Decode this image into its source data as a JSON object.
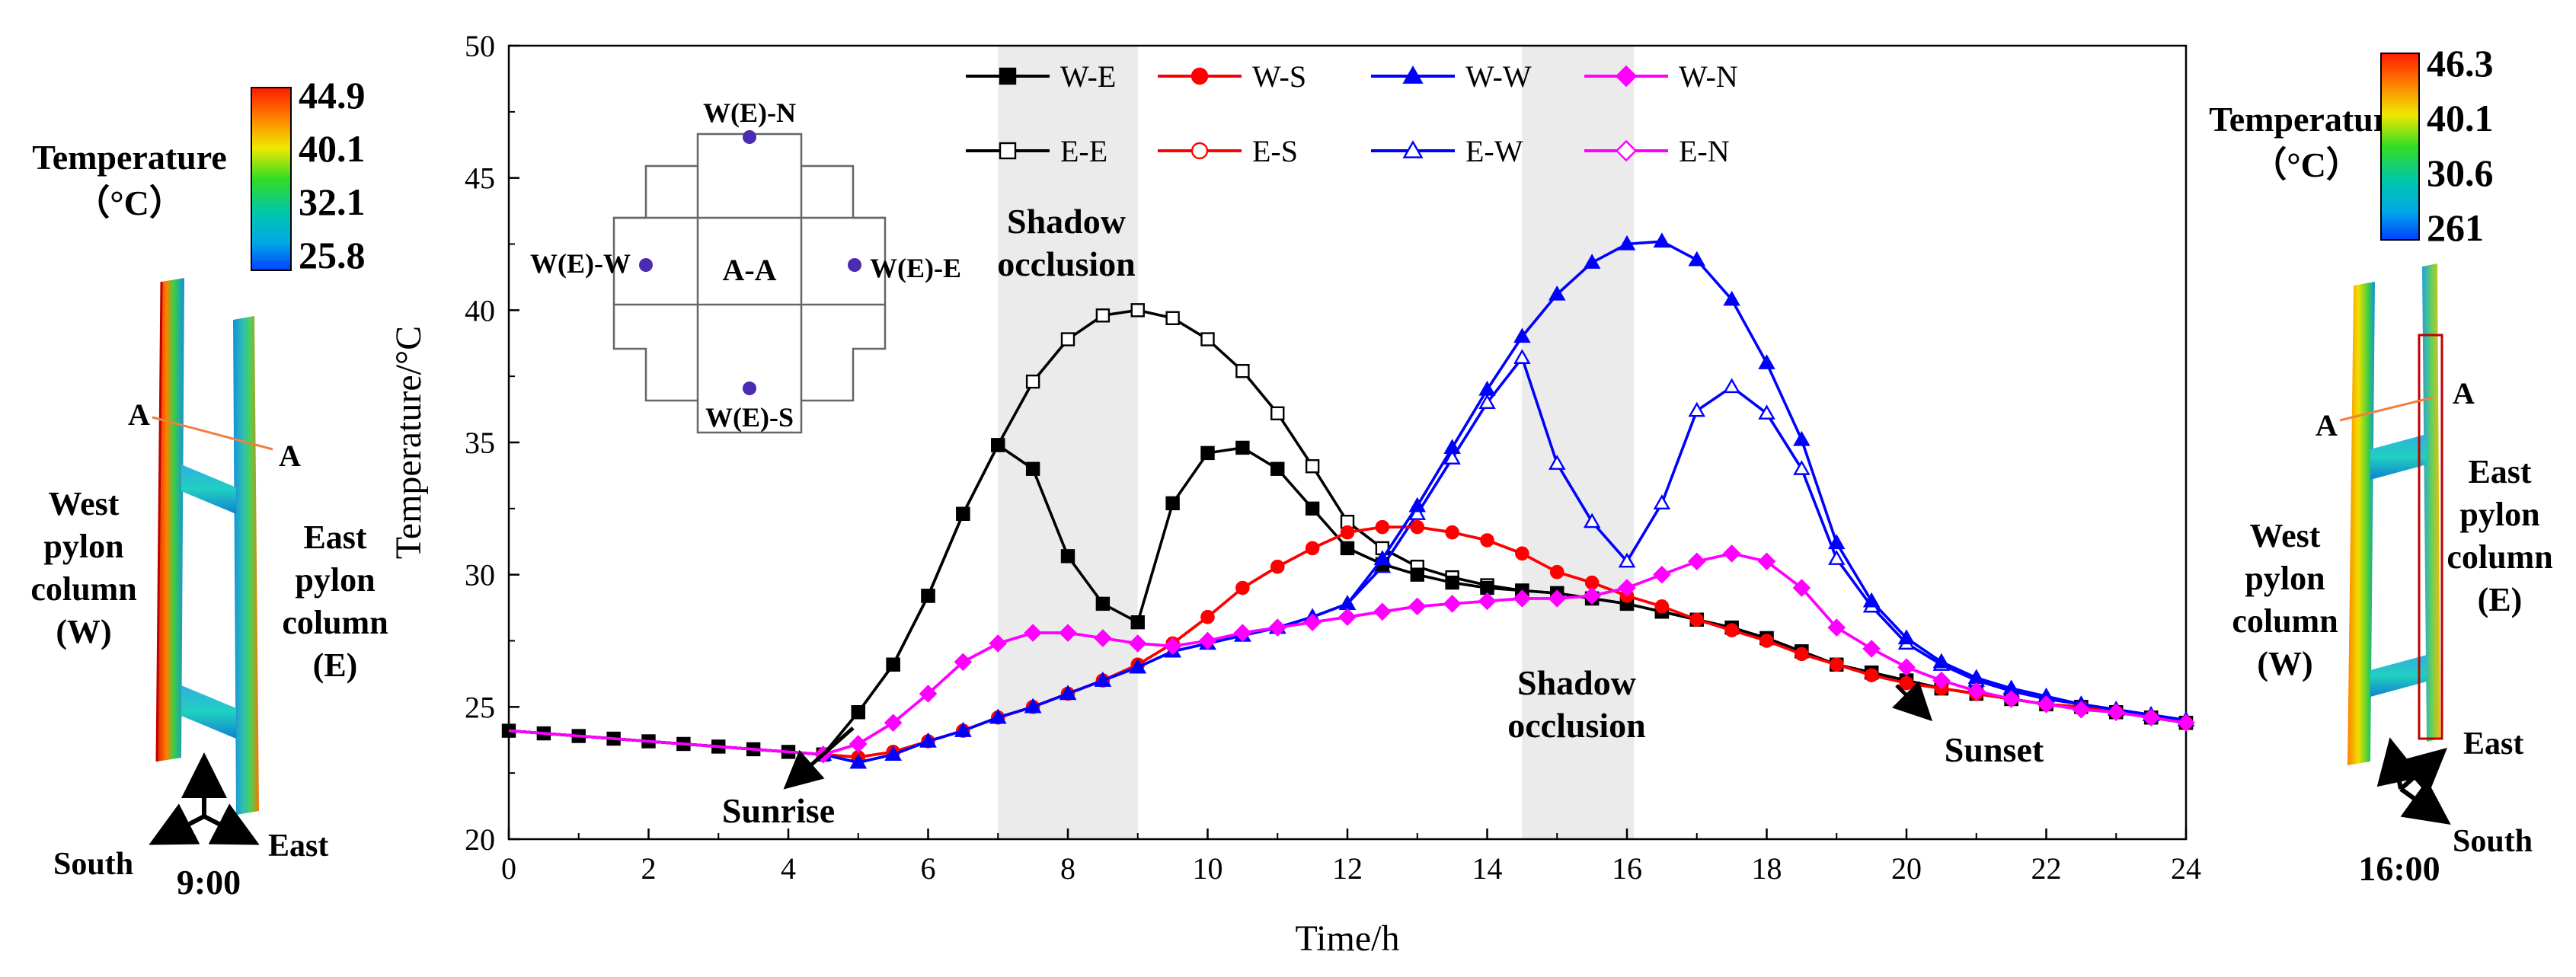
{
  "chart_data": {
    "type": "line",
    "xlabel": "Time/h",
    "ylabel": "Temperature/°C",
    "xlim": [
      0,
      24
    ],
    "ylim": [
      20,
      50
    ],
    "xticks": [
      "0",
      "2",
      "4",
      "6",
      "8",
      "10",
      "12",
      "14",
      "16",
      "18",
      "20",
      "22",
      "24"
    ],
    "yticks": [
      "20",
      "25",
      "30",
      "35",
      "40",
      "45",
      "50"
    ],
    "grid": false,
    "legend_position": "top",
    "x": [
      0,
      0.5,
      1,
      1.5,
      2,
      2.5,
      3,
      3.5,
      4,
      4.5,
      5,
      5.5,
      6,
      6.5,
      7,
      7.5,
      8,
      8.5,
      9,
      9.5,
      10,
      10.5,
      11,
      11.5,
      12,
      12.5,
      13,
      13.5,
      14,
      14.5,
      15,
      15.5,
      16,
      16.5,
      17,
      17.5,
      18,
      18.5,
      19,
      19.5,
      20,
      20.5,
      21,
      21.5,
      22,
      22.5,
      23,
      23.5,
      24
    ],
    "series": [
      {
        "name": "W-E",
        "color": "#000000",
        "marker": "square",
        "filled": true,
        "values": [
          24.1,
          24.0,
          23.9,
          23.8,
          23.7,
          23.6,
          23.5,
          23.4,
          23.3,
          23.2,
          24.8,
          26.6,
          29.2,
          32.3,
          34.9,
          34.0,
          30.7,
          28.9,
          28.2,
          32.7,
          34.6,
          34.8,
          34.0,
          32.5,
          31.0,
          30.4,
          30.0,
          29.7,
          29.5,
          29.4,
          29.3,
          29.1,
          28.9,
          28.6,
          28.3,
          28.0,
          27.6,
          27.1,
          26.6,
          26.3,
          26.0,
          25.7,
          25.5,
          25.3,
          25.1,
          25.0,
          24.8,
          24.6,
          24.4
        ]
      },
      {
        "name": "W-S",
        "color": "#ff0000",
        "marker": "circle",
        "filled": true,
        "values": [
          24.1,
          24.0,
          23.9,
          23.8,
          23.7,
          23.6,
          23.5,
          23.4,
          23.3,
          23.2,
          23.1,
          23.3,
          23.7,
          24.1,
          24.6,
          25.0,
          25.5,
          26.0,
          26.6,
          27.4,
          28.4,
          29.5,
          30.3,
          31.0,
          31.6,
          31.8,
          31.8,
          31.6,
          31.3,
          30.8,
          30.1,
          29.7,
          29.2,
          28.8,
          28.3,
          27.9,
          27.5,
          27.0,
          26.6,
          26.2,
          25.9,
          25.7,
          25.5,
          25.3,
          25.1,
          25.0,
          24.8,
          24.6,
          24.4
        ]
      },
      {
        "name": "W-W",
        "color": "#0000ff",
        "marker": "triangle",
        "filled": true,
        "values": [
          24.1,
          24.0,
          23.9,
          23.8,
          23.7,
          23.6,
          23.5,
          23.4,
          23.3,
          23.2,
          22.9,
          23.2,
          23.7,
          24.1,
          24.6,
          25.0,
          25.5,
          26.0,
          26.5,
          27.1,
          27.4,
          27.7,
          28.0,
          28.4,
          28.9,
          30.6,
          32.6,
          34.8,
          37.0,
          39.0,
          40.6,
          41.8,
          42.5,
          42.6,
          41.9,
          40.4,
          38.0,
          35.1,
          31.2,
          29.0,
          27.6,
          26.7,
          26.1,
          25.7,
          25.4,
          25.1,
          24.9,
          24.7,
          24.5
        ]
      },
      {
        "name": "W-N",
        "color": "#ff00ff",
        "marker": "diamond",
        "filled": true,
        "values": [
          24.1,
          24.0,
          23.9,
          23.8,
          23.7,
          23.6,
          23.5,
          23.4,
          23.3,
          23.2,
          23.6,
          24.4,
          25.5,
          26.7,
          27.4,
          27.8,
          27.8,
          27.6,
          27.4,
          27.3,
          27.5,
          27.8,
          28.0,
          28.2,
          28.4,
          28.6,
          28.8,
          28.9,
          29.0,
          29.1,
          29.1,
          29.2,
          29.5,
          30.0,
          30.5,
          30.8,
          30.5,
          29.5,
          28.0,
          27.2,
          26.5,
          26.0,
          25.6,
          25.3,
          25.1,
          24.9,
          24.8,
          24.6,
          24.4
        ]
      },
      {
        "name": "E-E",
        "color": "#000000",
        "marker": "square",
        "filled": false,
        "values": [
          24.1,
          24.0,
          23.9,
          23.8,
          23.7,
          23.6,
          23.5,
          23.4,
          23.3,
          23.2,
          24.8,
          26.6,
          29.2,
          32.3,
          34.9,
          37.3,
          38.9,
          39.8,
          40.0,
          39.7,
          38.9,
          37.7,
          36.1,
          34.1,
          32.0,
          31.0,
          30.3,
          29.9,
          29.6,
          29.4,
          29.3,
          29.1,
          28.9,
          28.6,
          28.3,
          28.0,
          27.6,
          27.1,
          26.6,
          26.3,
          26.0,
          25.7,
          25.5,
          25.3,
          25.1,
          25.0,
          24.8,
          24.6,
          24.4
        ]
      },
      {
        "name": "E-S",
        "color": "#ff0000",
        "marker": "circle",
        "filled": false,
        "values": [
          24.1,
          24.0,
          23.9,
          23.8,
          23.7,
          23.6,
          23.5,
          23.4,
          23.3,
          23.2,
          23.1,
          23.3,
          23.7,
          24.1,
          24.6,
          25.0,
          25.5,
          26.0,
          26.6,
          27.4,
          28.4,
          29.5,
          30.3,
          31.0,
          31.6,
          31.8,
          31.8,
          31.6,
          31.3,
          30.8,
          30.1,
          29.7,
          29.2,
          28.8,
          28.3,
          27.9,
          27.5,
          27.0,
          26.6,
          26.2,
          25.9,
          25.7,
          25.5,
          25.3,
          25.1,
          25.0,
          24.8,
          24.6,
          24.4
        ]
      },
      {
        "name": "E-W",
        "color": "#0000ff",
        "marker": "triangle",
        "filled": false,
        "values": [
          24.1,
          24.0,
          23.9,
          23.8,
          23.7,
          23.6,
          23.5,
          23.4,
          23.3,
          23.2,
          22.9,
          23.2,
          23.7,
          24.1,
          24.6,
          25.0,
          25.5,
          26.0,
          26.5,
          27.1,
          27.4,
          27.7,
          28.0,
          28.4,
          28.9,
          30.3,
          32.3,
          34.4,
          36.5,
          38.2,
          34.2,
          32.0,
          30.5,
          32.7,
          36.2,
          37.1,
          36.1,
          34.0,
          30.6,
          28.8,
          27.4,
          26.6,
          26.0,
          25.6,
          25.3,
          25.1,
          24.9,
          24.7,
          24.5
        ]
      },
      {
        "name": "E-N",
        "color": "#ff00ff",
        "marker": "diamond",
        "filled": false,
        "values": [
          24.1,
          24.0,
          23.9,
          23.8,
          23.7,
          23.6,
          23.5,
          23.4,
          23.3,
          23.2,
          23.6,
          24.4,
          25.5,
          26.7,
          27.4,
          27.8,
          27.8,
          27.6,
          27.4,
          27.3,
          27.5,
          27.8,
          28.0,
          28.2,
          28.4,
          28.6,
          28.8,
          28.9,
          29.0,
          29.1,
          29.1,
          29.2,
          29.5,
          30.0,
          30.5,
          30.8,
          30.5,
          29.5,
          28.0,
          27.2,
          26.5,
          26.0,
          25.6,
          25.3,
          25.1,
          24.9,
          24.8,
          24.6,
          24.4
        ]
      }
    ],
    "shaded_bands": [
      {
        "x0": 7,
        "x1": 9,
        "label_line1": "Shadow",
        "label_line2": "occlusion"
      },
      {
        "x0": 14.5,
        "x1": 16.1,
        "label_line1": "Shadow",
        "label_line2": "occlusion"
      }
    ],
    "annotations": {
      "sunrise": "Sunrise",
      "sunset": "Sunset"
    },
    "inset": {
      "section": "A-A",
      "north": "W(E)-N",
      "south": "W(E)-S",
      "west": "W(E)-W",
      "east": "W(E)-E"
    }
  },
  "left_panel": {
    "title": "Temperature",
    "unit": "（°C）",
    "scale": [
      "44.9",
      "40.1",
      "32.1",
      "25.8"
    ],
    "section": "A",
    "west_lines": [
      "West",
      "pylon",
      "column",
      "(W)"
    ],
    "east_lines": [
      "East",
      "pylon",
      "column",
      "(E)"
    ],
    "axis_south": "South",
    "axis_east": "East",
    "time": "9:00"
  },
  "right_panel": {
    "title": "Temperature",
    "unit": "（°C）",
    "scale": [
      "46.3",
      "40.1",
      "30.6",
      "261"
    ],
    "section": "A",
    "west_lines": [
      "West",
      "pylon",
      "column",
      "(W)"
    ],
    "east_lines": [
      "East",
      "pylon",
      "column",
      "(E)"
    ],
    "axis_east": "East",
    "axis_south": "South",
    "time": "16:00"
  }
}
